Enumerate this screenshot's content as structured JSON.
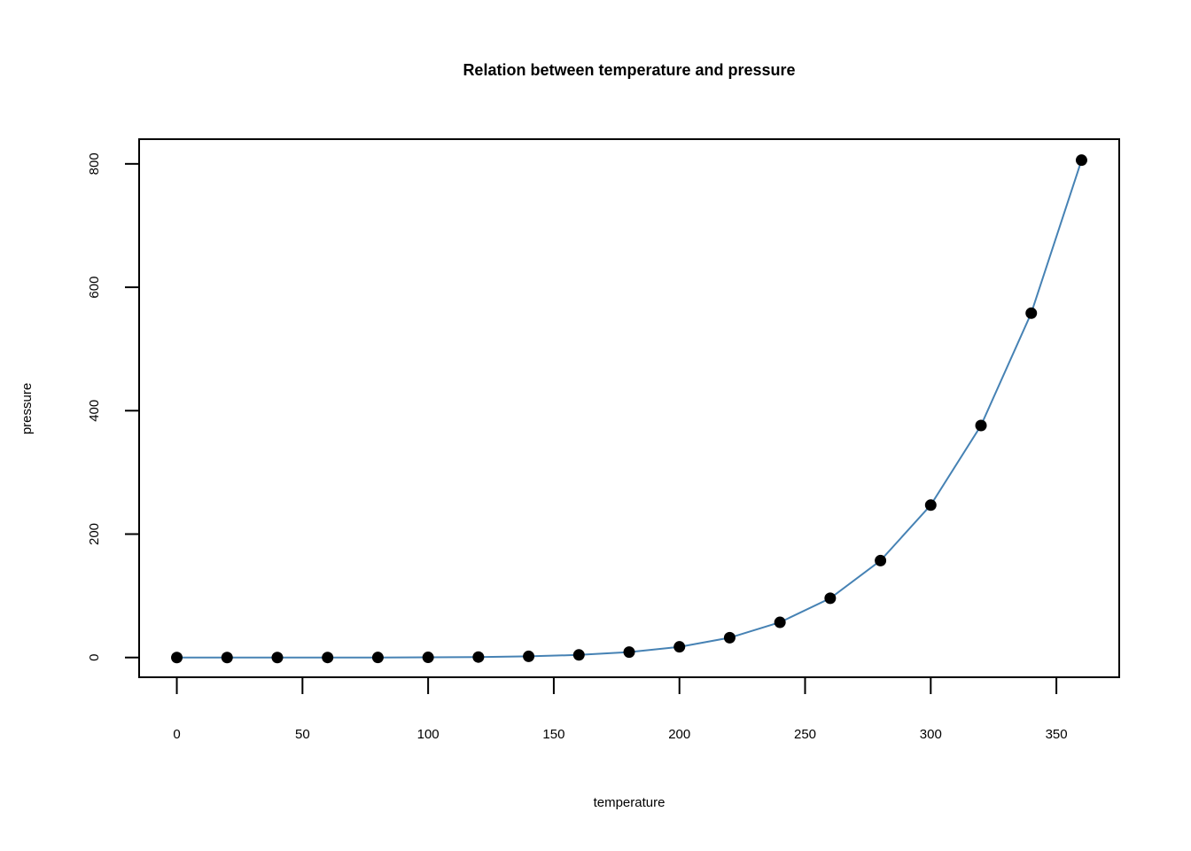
{
  "chart_data": {
    "type": "line",
    "title": "Relation between temperature and pressure",
    "xlabel": "temperature",
    "ylabel": "pressure",
    "xlim": [
      -15,
      375
    ],
    "ylim": [
      -32,
      840
    ],
    "x_ticks": [
      0,
      50,
      100,
      150,
      200,
      250,
      300,
      350
    ],
    "y_ticks": [
      0,
      200,
      400,
      600,
      800
    ],
    "grid": false,
    "legend": "none",
    "line_color": "#4682B4",
    "point_color": "#000000",
    "series": [
      {
        "x": [
          0,
          20,
          40,
          60,
          80,
          100,
          120,
          140,
          160,
          180,
          200,
          220,
          240,
          260,
          280,
          300,
          320,
          340,
          360
        ],
        "values": [
          0.0002,
          0.0012,
          0.006,
          0.03,
          0.09,
          0.27,
          0.75,
          1.85,
          4.2,
          8.8,
          17.3,
          32.1,
          57,
          96,
          157,
          247,
          376,
          558,
          806
        ]
      }
    ]
  }
}
